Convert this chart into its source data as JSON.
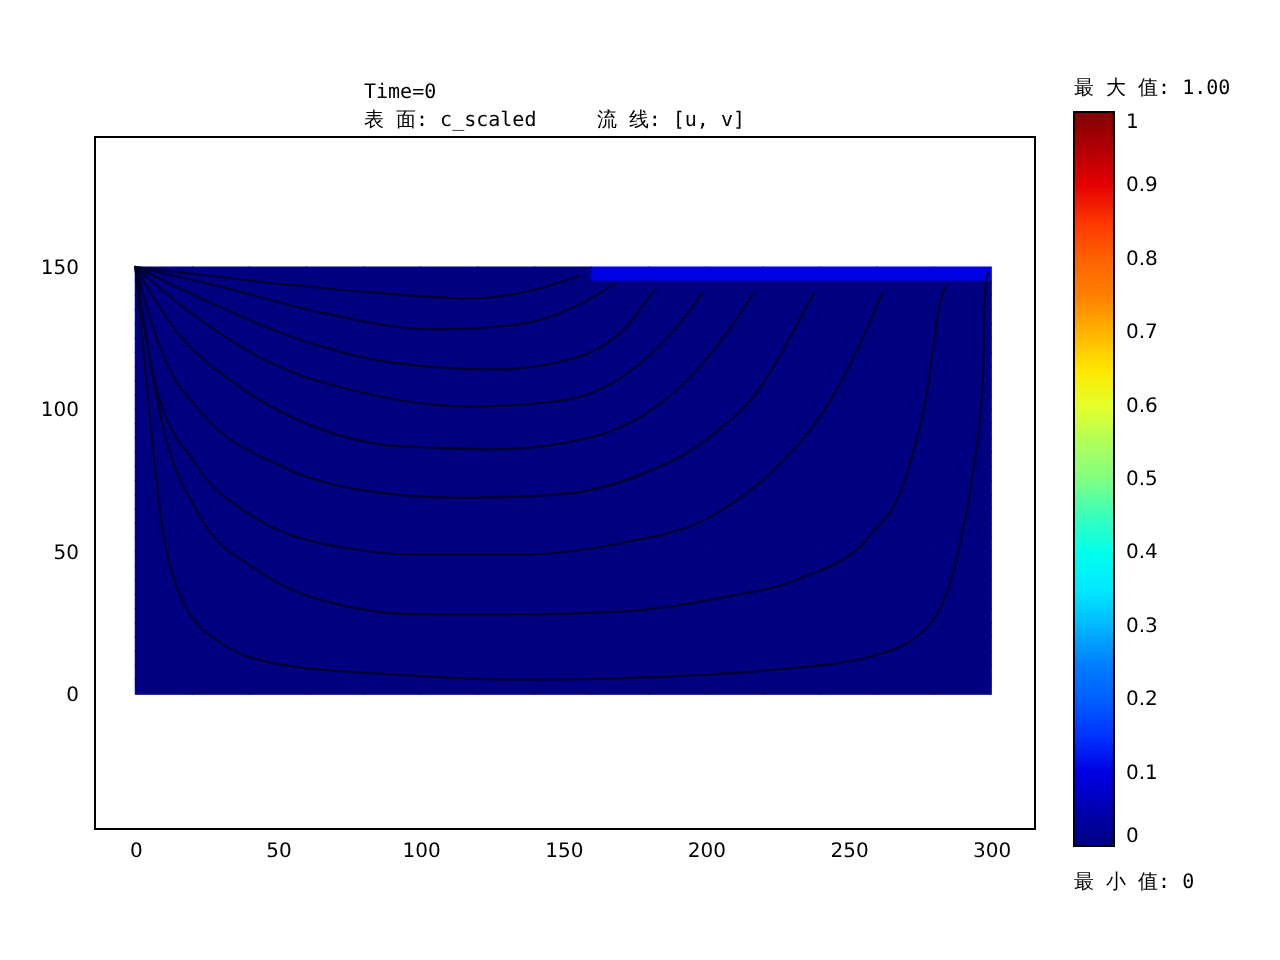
{
  "chart_data": {
    "type": "heatmap",
    "title": "Time=0",
    "subtitle": "表 面: c_scaled     流 线: [u, v]",
    "clabel": "最 大 值: 1.00",
    "annotations": [
      "最 小 值: 0"
    ],
    "x": [
      10,
      30,
      50,
      70,
      90,
      110,
      130,
      150,
      170,
      190,
      210,
      230,
      250,
      270,
      290
    ],
    "y": [
      147.5,
      142.5,
      137.5,
      132.5,
      127.5,
      122.5,
      117.5,
      112.5,
      107.5,
      102.5,
      97.5,
      92.5,
      87.5,
      82.5,
      77.5,
      72.5,
      67.5,
      62.5,
      57.5,
      52.5,
      47.5,
      42.5,
      37.5,
      32.5,
      27.5,
      22.5,
      17.5,
      12.5,
      7.5,
      2.5
    ],
    "cells": [
      [
        0,
        0,
        0,
        0,
        0,
        0,
        0,
        0,
        0.1,
        0.1,
        0.1,
        0.1,
        0.1,
        0.1,
        0.1
      ],
      [
        0,
        0,
        0,
        0,
        0,
        0,
        0,
        0,
        0,
        0,
        0,
        0,
        0,
        0,
        0
      ],
      [
        0,
        0,
        0,
        0,
        0,
        0,
        0,
        0,
        0,
        0,
        0,
        0,
        0,
        0,
        0
      ],
      [
        0,
        0,
        0,
        0,
        0,
        0,
        0,
        0,
        0,
        0,
        0,
        0,
        0,
        0,
        0
      ],
      [
        0,
        0,
        0,
        0,
        0,
        0,
        0,
        0,
        0,
        0,
        0,
        0,
        0,
        0,
        0
      ],
      [
        0,
        0,
        0,
        0,
        0,
        0,
        0,
        0,
        0,
        0,
        0,
        0,
        0,
        0,
        0
      ],
      [
        0,
        0,
        0,
        0,
        0,
        0,
        0,
        0,
        0,
        0,
        0,
        0,
        0,
        0,
        0
      ],
      [
        0,
        0,
        0,
        0,
        0,
        0,
        0,
        0,
        0,
        0,
        0,
        0,
        0,
        0,
        0
      ],
      [
        0,
        0,
        0,
        0,
        0,
        0,
        0,
        0,
        0,
        0,
        0,
        0,
        0,
        0,
        0
      ],
      [
        0,
        0,
        0,
        0,
        0,
        0,
        0,
        0,
        0,
        0,
        0,
        0,
        0,
        0,
        0
      ],
      [
        0,
        0,
        0,
        0,
        0,
        0,
        0,
        0,
        0,
        0,
        0,
        0,
        0,
        0,
        0
      ],
      [
        0,
        0,
        0,
        0,
        0,
        0,
        0,
        0,
        0,
        0,
        0,
        0,
        0,
        0,
        0
      ],
      [
        0,
        0,
        0,
        0,
        0,
        0,
        0,
        0,
        0,
        0,
        0,
        0,
        0,
        0,
        0
      ],
      [
        0,
        0,
        0,
        0,
        0,
        0,
        0,
        0,
        0,
        0,
        0,
        0,
        0,
        0,
        0
      ],
      [
        0,
        0,
        0,
        0,
        0,
        0,
        0,
        0,
        0,
        0,
        0,
        0,
        0,
        0,
        0
      ],
      [
        0,
        0,
        0,
        0,
        0,
        0,
        0,
        0,
        0,
        0,
        0,
        0,
        0,
        0,
        0
      ],
      [
        0,
        0,
        0,
        0,
        0,
        0,
        0,
        0,
        0,
        0,
        0,
        0,
        0,
        0,
        0
      ],
      [
        0,
        0,
        0,
        0,
        0,
        0,
        0,
        0,
        0,
        0,
        0,
        0,
        0,
        0,
        0
      ],
      [
        0,
        0,
        0,
        0,
        0,
        0,
        0,
        0,
        0,
        0,
        0,
        0,
        0,
        0,
        0
      ],
      [
        0,
        0,
        0,
        0,
        0,
        0,
        0,
        0,
        0,
        0,
        0,
        0,
        0,
        0,
        0
      ],
      [
        0,
        0,
        0,
        0,
        0,
        0,
        0,
        0,
        0,
        0,
        0,
        0,
        0,
        0,
        0
      ],
      [
        0,
        0,
        0,
        0,
        0,
        0,
        0,
        0,
        0,
        0,
        0,
        0,
        0,
        0,
        0
      ],
      [
        0,
        0,
        0,
        0,
        0,
        0,
        0,
        0,
        0,
        0,
        0,
        0,
        0,
        0,
        0
      ],
      [
        0,
        0,
        0,
        0,
        0,
        0,
        0,
        0,
        0,
        0,
        0,
        0,
        0,
        0,
        0
      ],
      [
        0,
        0,
        0,
        0,
        0,
        0,
        0,
        0,
        0,
        0,
        0,
        0,
        0,
        0,
        0
      ],
      [
        0,
        0,
        0,
        0,
        0,
        0,
        0,
        0,
        0,
        0,
        0,
        0,
        0,
        0,
        0
      ],
      [
        0,
        0,
        0,
        0,
        0,
        0,
        0,
        0,
        0,
        0,
        0,
        0,
        0,
        0,
        0
      ],
      [
        0,
        0,
        0,
        0,
        0,
        0,
        0,
        0,
        0,
        0,
        0,
        0,
        0,
        0,
        0
      ],
      [
        0,
        0,
        0,
        0,
        0,
        0,
        0,
        0,
        0,
        0,
        0,
        0,
        0,
        0,
        0
      ],
      [
        0,
        0,
        0,
        0,
        0,
        0,
        0,
        0,
        0,
        0,
        0,
        0,
        0,
        0,
        0
      ]
    ],
    "clim": [
      0,
      1
    ],
    "cticks": [
      0,
      0.1,
      0.2,
      0.3,
      0.4,
      0.5,
      0.6,
      0.7,
      0.8,
      0.9,
      1
    ],
    "xlim": [
      -14.5,
      315
    ],
    "ylim": [
      -47,
      196
    ],
    "xticks": [
      0,
      50,
      100,
      150,
      200,
      250,
      300
    ],
    "yticks": [
      0,
      50,
      100,
      150
    ],
    "line_style": "solid",
    "series": [
      {
        "type": "line",
        "color": "#000030",
        "x": [
          0,
          42,
          84,
          117,
          140,
          156
        ],
        "values": [
          150,
          145,
          141,
          139,
          142,
          147
        ]
      },
      {
        "type": "line",
        "color": "#000030",
        "x": [
          0,
          30,
          65,
          105,
          135,
          156,
          168
        ],
        "values": [
          150,
          143,
          134,
          128,
          130,
          137,
          144
        ]
      },
      {
        "type": "line",
        "color": "#000030",
        "x": [
          0,
          23,
          56,
          93,
          126,
          154,
          173,
          182
        ],
        "values": [
          150,
          139,
          125,
          116,
          114,
          118,
          130,
          142
        ]
      },
      {
        "type": "line",
        "color": "#000030",
        "x": [
          0,
          18,
          46,
          79,
          117,
          149,
          173,
          189,
          199
        ],
        "values": [
          150,
          135,
          117,
          106,
          101,
          103,
          113,
          128,
          141
        ]
      },
      {
        "type": "line",
        "color": "#000030",
        "x": [
          0,
          14,
          35,
          60,
          93,
          126,
          159,
          184,
          203,
          217
        ],
        "values": [
          150,
          128,
          109,
          95,
          87,
          86,
          90,
          102,
          121,
          141
        ]
      },
      {
        "type": "line",
        "color": "#000030",
        "x": [
          0,
          9,
          25,
          49,
          77,
          112,
          147,
          177,
          201,
          220,
          231,
          238
        ],
        "values": [
          150,
          121,
          97,
          81,
          72,
          69,
          70,
          77,
          90,
          109,
          128,
          141
        ]
      },
      {
        "type": "line",
        "color": "#000030",
        "x": [
          0,
          7,
          21,
          42,
          65,
          100,
          135,
          170,
          201,
          224,
          243,
          255,
          262
        ],
        "values": [
          150,
          109,
          81,
          62,
          53,
          49,
          49,
          53,
          62,
          79,
          102,
          125,
          141
        ]
      },
      {
        "type": "line",
        "color": "#000030",
        "x": [
          0,
          9,
          23,
          42,
          65,
          100,
          135,
          170,
          206,
          234,
          257,
          271,
          278,
          282,
          284
        ],
        "values": [
          150,
          97,
          62,
          44,
          33,
          28,
          28,
          29,
          34,
          41,
          55,
          79,
          109,
          137,
          143
        ]
      },
      {
        "type": "line",
        "color": "#000030",
        "x": [
          0,
          4,
          9,
          16,
          30,
          53,
          89,
          135,
          182,
          229,
          257,
          276,
          287,
          293,
          297,
          298,
          299
        ],
        "values": [
          150,
          109,
          62,
          34,
          18,
          10,
          7,
          5,
          6,
          9,
          13,
          22,
          44,
          74,
          109,
          142,
          148
        ]
      }
    ]
  }
}
